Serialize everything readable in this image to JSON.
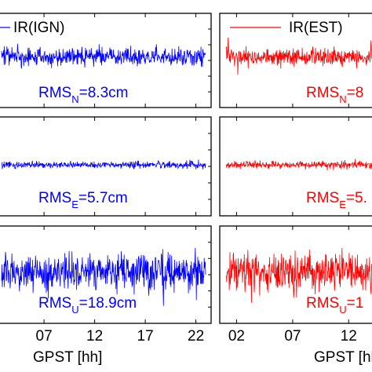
{
  "chart_data": [
    {
      "type": "line",
      "name": "left-column",
      "xlabel": "GPST [hh]",
      "x_ticks": [
        "07",
        "12",
        "17",
        "22"
      ],
      "legend": "IR(IGN)",
      "color": "#0000ff",
      "xlim": [
        2.5,
        23.5
      ],
      "panels": [
        {
          "component": "N",
          "rms_label": {
            "prefix": "RMS",
            "sub": "N",
            "value": "=8.3cm"
          },
          "rms_cm": 8.3
        },
        {
          "component": "E",
          "rms_label": {
            "prefix": "RMS",
            "sub": "E",
            "value": "=5.7cm"
          },
          "rms_cm": 5.7
        },
        {
          "component": "U",
          "rms_label": {
            "prefix": "RMS",
            "sub": "U",
            "value": "=18.9cm"
          },
          "rms_cm": 18.9
        }
      ]
    },
    {
      "type": "line",
      "name": "right-column",
      "xlabel": "GPST [hh]",
      "x_ticks": [
        "02",
        "07",
        "12"
      ],
      "legend": "IR(EST)",
      "color": "#ff0000",
      "xlim": [
        0.5,
        14.5
      ],
      "panels": [
        {
          "component": "N",
          "rms_label": {
            "prefix": "RMS",
            "sub": "N",
            "value": "=8"
          }
        },
        {
          "component": "E",
          "rms_label": {
            "prefix": "RMS",
            "sub": "E",
            "value": "=5."
          }
        },
        {
          "component": "U",
          "rms_label": {
            "prefix": "RMS",
            "sub": "U",
            "value": "=1"
          }
        }
      ]
    }
  ]
}
